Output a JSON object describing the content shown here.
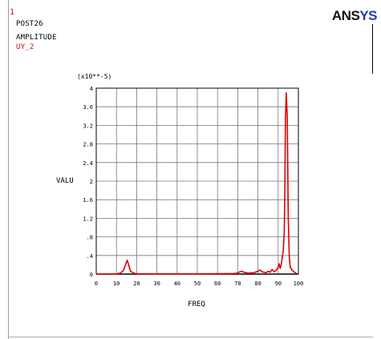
{
  "window": {
    "number": "1"
  },
  "header": {
    "program": "POST26",
    "mode": "AMPLITUDE",
    "variable": "UY_2"
  },
  "logo": {
    "prefix": "ANS",
    "suffix": "YS"
  },
  "colors": {
    "curve": "#e00000",
    "grid": "#777777",
    "axis": "#000000",
    "variable_label": "#e00000",
    "logo_suffix": "#1a3fb0"
  },
  "chart_data": {
    "type": "line",
    "title": "",
    "xlabel": "FREQ",
    "ylabel": "VALU",
    "y_multiplier": "(x10**-5)",
    "xlim": [
      0,
      100
    ],
    "ylim": [
      0,
      4
    ],
    "grid": true,
    "xticks": [
      "0",
      "10",
      "20",
      "30",
      "40",
      "50",
      "60",
      "70",
      "80",
      "90",
      "100"
    ],
    "yticks": [
      "0",
      ".4",
      ".8",
      "1.2",
      "1.6",
      "2",
      "2.4",
      "2.8",
      "3.2",
      "3.6",
      "4"
    ],
    "series": [
      {
        "color": "#e00000",
        "x": [
          0,
          5,
          10,
          12,
          13.5,
          14.5,
          15.3,
          16.0,
          17.0,
          18.5,
          20,
          30,
          40,
          50,
          60,
          68,
          70,
          71,
          72,
          73,
          75,
          78,
          80,
          81,
          82,
          84,
          85,
          86,
          87,
          88,
          89,
          90,
          90.5,
          91,
          91.5,
          92,
          92.5,
          93,
          93.3,
          93.6,
          94,
          94.5,
          95,
          95.5,
          96,
          97,
          98,
          99
        ],
        "y": [
          0.0,
          0.0,
          0.005,
          0.02,
          0.08,
          0.2,
          0.3,
          0.2,
          0.06,
          0.02,
          0.008,
          0.005,
          0.005,
          0.005,
          0.008,
          0.012,
          0.02,
          0.05,
          0.06,
          0.04,
          0.02,
          0.03,
          0.06,
          0.09,
          0.05,
          0.03,
          0.06,
          0.04,
          0.1,
          0.05,
          0.08,
          0.15,
          0.22,
          0.12,
          0.2,
          0.35,
          0.5,
          0.9,
          1.8,
          3.4,
          3.9,
          3.4,
          1.2,
          0.35,
          0.15,
          0.08,
          0.04,
          0.02
        ]
      }
    ]
  }
}
